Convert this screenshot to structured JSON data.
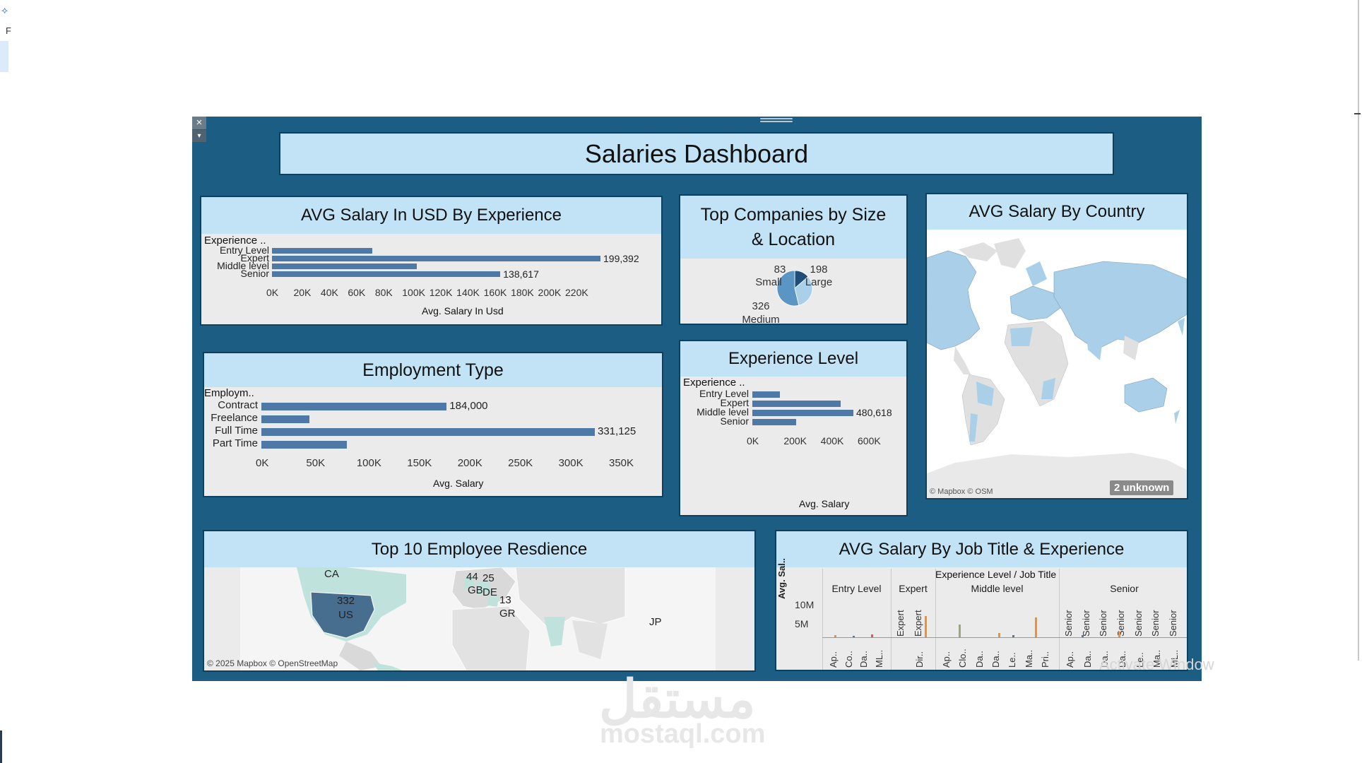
{
  "dashboard": {
    "title": "Salaries Dashboard",
    "colors": {
      "background": "#1c5e83",
      "header": "#c2e3f5",
      "bar": "#4e79a7"
    }
  },
  "window_controls": {
    "close_glyph": "×",
    "menu_glyph": "▾"
  },
  "panel_exp_salary": {
    "title": "AVG Salary In USD By Experience",
    "dim_header": "Experience ..",
    "axis_title": "Avg. Salary In Usd",
    "ticks": [
      "0K",
      "20K",
      "40K",
      "60K",
      "80K",
      "100K",
      "120K",
      "140K",
      "160K",
      "180K",
      "200K",
      "220K"
    ],
    "rows": [
      {
        "label": "Entry Level",
        "value": 61000,
        "value_label": ""
      },
      {
        "label": "Expert",
        "value": 199392,
        "value_label": "199,392"
      },
      {
        "label": "Middle level",
        "value": 88000,
        "value_label": ""
      },
      {
        "label": "Senior",
        "value": 138617,
        "value_label": "138,617"
      }
    ]
  },
  "panel_companies": {
    "title": "Top Companies by Size & Location",
    "slices": [
      {
        "name": "Small",
        "value": 83,
        "color": "#1f4e79"
      },
      {
        "name": "Large",
        "value": 198,
        "color": "#a9cfe9"
      },
      {
        "name": "Medium",
        "value": 326,
        "color": "#5b95c4"
      }
    ]
  },
  "panel_country": {
    "title": "AVG Salary By Country",
    "attribution": "© Mapbox © OSM",
    "unknown_badge": "2 unknown"
  },
  "panel_employment": {
    "title": "Employment Type",
    "dim_header": "Employm..",
    "axis_title": "Avg. Salary",
    "ticks": [
      "0K",
      "50K",
      "100K",
      "150K",
      "200K",
      "250K",
      "300K",
      "350K"
    ],
    "rows": [
      {
        "label": "Contract",
        "value": 184000,
        "value_label": "184,000"
      },
      {
        "label": "Freelance",
        "value": 48000,
        "value_label": ""
      },
      {
        "label": "Full Time",
        "value": 331125,
        "value_label": "331,125"
      },
      {
        "label": "Part Time",
        "value": 85000,
        "value_label": ""
      }
    ]
  },
  "panel_exp_level": {
    "title": "Experience Level",
    "dim_header": "Experience ..",
    "axis_title": "Avg. Salary",
    "ticks": [
      "0K",
      "200K",
      "400K",
      "600K"
    ],
    "rows": [
      {
        "label": "Entry Level",
        "value": 130000,
        "value_label": ""
      },
      {
        "label": "Expert",
        "value": 420000,
        "value_label": ""
      },
      {
        "label": "Middle level",
        "value": 480618,
        "value_label": "480,618"
      },
      {
        "label": "Senior",
        "value": 210000,
        "value_label": ""
      }
    ]
  },
  "panel_residence": {
    "title": "Top 10 Employee Resdience",
    "attribution": "© 2025 Mapbox © OpenStreetMap",
    "labels": [
      {
        "code": "CA",
        "count": ""
      },
      {
        "code": "US",
        "count": "332"
      },
      {
        "code": "GB",
        "count": "44"
      },
      {
        "code": "DE",
        "count": "25"
      },
      {
        "code": "GR",
        "count": "13"
      },
      {
        "code": "JP",
        "count": ""
      }
    ]
  },
  "panel_jobtitle": {
    "title": "AVG Salary By Job Title & Experience",
    "top_header": "Experience Level  /  Job Title",
    "y_axis_title": "Avg. Sal..",
    "y_ticks": [
      "10M",
      "5M"
    ],
    "groups": [
      {
        "name": "Entry Level",
        "jobs": [
          "Ap..",
          "Co..",
          "Da..",
          "ML.."
        ]
      },
      {
        "name": "Expert",
        "jobs": [
          "Dir.."
        ],
        "vertical": [
          "Expert",
          "Expert"
        ]
      },
      {
        "name": "Middle level",
        "jobs": [
          "Ap..",
          "Clo..",
          "Da..",
          "Da..",
          "Le..",
          "Ma..",
          "Pri.."
        ]
      },
      {
        "name": "Senior",
        "jobs": [
          "Ap..",
          "Da..",
          "Da..",
          "Da..",
          "Le..",
          "Ma..",
          "ML.."
        ],
        "vertical": [
          "Senior",
          "Senior",
          "Senior",
          "Senior",
          "Senior",
          "Senior",
          "Senior"
        ]
      }
    ]
  },
  "watermark": {
    "arabic": "مستقل",
    "site": "mostaql.com"
  },
  "os_overlay": {
    "activate": "Activate Window"
  },
  "edge": {
    "left_letter": "F"
  }
}
